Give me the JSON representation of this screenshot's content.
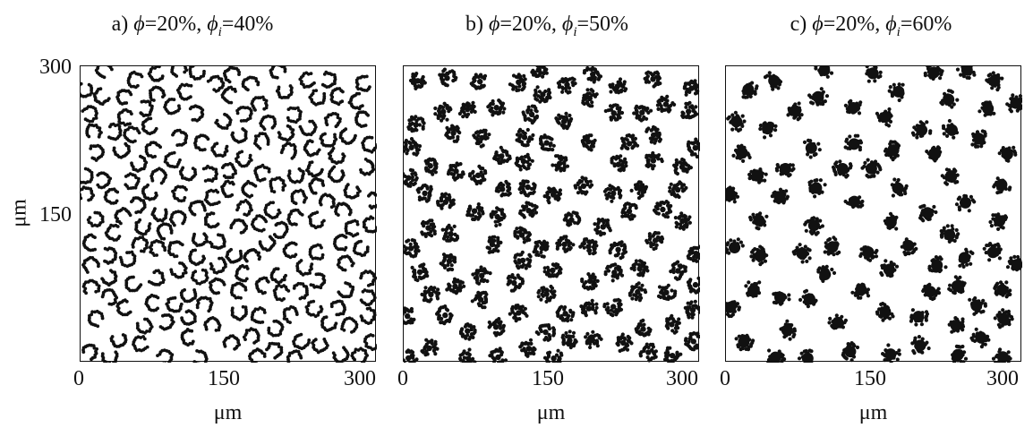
{
  "panels": [
    {
      "label": "a)",
      "phi_sym": "ϕ",
      "phi_val": "=20%, ",
      "phii_sym": "ϕ",
      "phii_sub": "i",
      "phii_val": "=40%",
      "style": "ring",
      "seed": 11
    },
    {
      "label": "b)",
      "phi_sym": "ϕ",
      "phi_val": "=20%, ",
      "phii_sym": "ϕ",
      "phii_sub": "i",
      "phii_val": "=50%",
      "style": "half",
      "seed": 23
    },
    {
      "label": "c)",
      "phi_sym": "ϕ",
      "phi_val": "=20%, ",
      "phii_sym": "ϕ",
      "phii_sub": "i",
      "phii_val": "=60%",
      "style": "solid",
      "seed": 37
    }
  ],
  "axes": {
    "x_ticks": [
      "0",
      "150",
      "300"
    ],
    "y_ticks": [
      "300",
      "150"
    ],
    "x_label": "μm",
    "y_label": "μm"
  },
  "colors": {
    "dots": "#111111",
    "frame": "#111111",
    "background": "#ffffff"
  }
}
